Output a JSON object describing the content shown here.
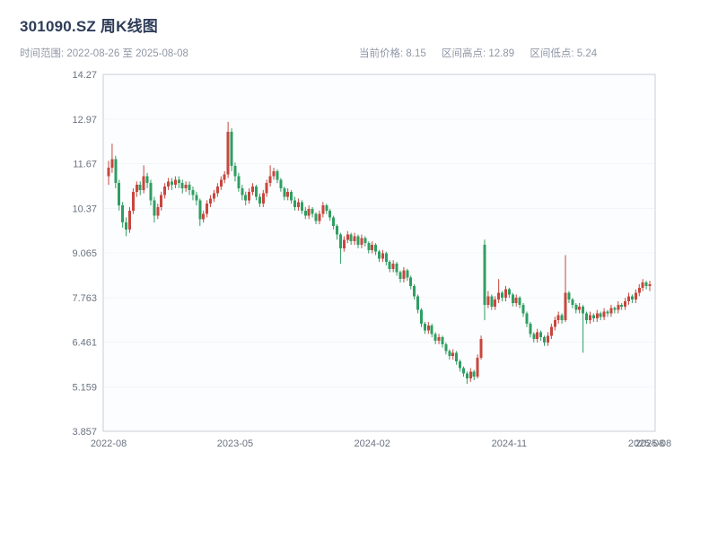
{
  "header": {
    "title": "301090.SZ 周K线图",
    "time_range": "时间范围: 2022-08-26 至 2025-08-08",
    "stats": {
      "current_price": "当前价格: 8.15",
      "range_high": "区间高点: 12.89",
      "range_low": "区间低点: 5.24"
    }
  },
  "chart_data": {
    "type": "candlestick",
    "title": "301090.SZ 周K线图",
    "period": "weekly",
    "date_range": [
      "2022-08-26",
      "2025-08-08"
    ],
    "current_price": 8.15,
    "range_high": 12.89,
    "range_low": 5.24,
    "ylim": [
      3.857,
      14.273
    ],
    "grid": "horizontal-faint",
    "legend": "none",
    "y_ticks": [
      {
        "value": 3.857,
        "label": "3.857"
      },
      {
        "value": 5.159,
        "label": "5.159"
      },
      {
        "value": 6.461,
        "label": "6.461"
      },
      {
        "value": 7.763,
        "label": "7.763"
      },
      {
        "value": 9.065,
        "label": "9.065"
      },
      {
        "value": 10.367,
        "label": "10.37"
      },
      {
        "value": 11.669,
        "label": "11.67"
      },
      {
        "value": 12.971,
        "label": "12.97"
      },
      {
        "value": 14.273,
        "label": "14.27"
      }
    ],
    "x_ticks": [
      {
        "index": 0,
        "label": "2022-08"
      },
      {
        "index": 36,
        "label": "2023-05"
      },
      {
        "index": 75,
        "label": "2024-02"
      },
      {
        "index": 114,
        "label": "2024-11"
      },
      {
        "index": 153,
        "label": "2025-08"
      },
      {
        "index": 155,
        "label": "2025-08"
      }
    ],
    "colors": {
      "up": "#c8463e",
      "down": "#2f9e62",
      "axis_text": "#6a7380",
      "grid": "#f3f5f8",
      "plot_border": "#c9ced7",
      "plot_bg": "#fcfdfe",
      "title": "#2e3c58",
      "subtitle": "#8f97a6"
    },
    "candles_format": [
      "open",
      "high",
      "low",
      "close"
    ],
    "candles": [
      [
        11.3,
        11.75,
        11.05,
        11.55
      ],
      [
        11.55,
        12.25,
        11.4,
        11.8
      ],
      [
        11.8,
        11.9,
        10.95,
        11.1
      ],
      [
        11.1,
        11.2,
        10.3,
        10.45
      ],
      [
        10.45,
        10.55,
        9.8,
        9.95
      ],
      [
        9.95,
        10.1,
        9.55,
        9.75
      ],
      [
        9.75,
        10.4,
        9.65,
        10.3
      ],
      [
        10.3,
        10.95,
        10.2,
        10.85
      ],
      [
        10.85,
        11.15,
        10.7,
        11.05
      ],
      [
        11.05,
        11.15,
        10.75,
        10.9
      ],
      [
        10.9,
        11.62,
        10.8,
        11.3
      ],
      [
        11.3,
        11.4,
        10.95,
        11.1
      ],
      [
        11.1,
        11.2,
        10.45,
        10.6
      ],
      [
        10.6,
        10.7,
        9.95,
        10.15
      ],
      [
        10.15,
        10.5,
        10.05,
        10.4
      ],
      [
        10.4,
        10.85,
        10.3,
        10.75
      ],
      [
        10.75,
        11.1,
        10.65,
        11.0
      ],
      [
        11.0,
        11.25,
        10.9,
        11.15
      ],
      [
        11.15,
        11.25,
        10.9,
        11.05
      ],
      [
        11.05,
        11.3,
        10.95,
        11.2
      ],
      [
        11.2,
        11.3,
        10.95,
        11.1
      ],
      [
        11.1,
        11.2,
        10.8,
        10.95
      ],
      [
        10.95,
        11.15,
        10.85,
        11.05
      ],
      [
        11.05,
        11.15,
        10.75,
        10.9
      ],
      [
        10.9,
        11.0,
        10.6,
        10.75
      ],
      [
        10.75,
        10.85,
        10.45,
        10.6
      ],
      [
        10.6,
        10.65,
        9.85,
        10.05
      ],
      [
        10.05,
        10.3,
        9.95,
        10.2
      ],
      [
        10.2,
        10.6,
        10.1,
        10.5
      ],
      [
        10.5,
        10.75,
        10.4,
        10.65
      ],
      [
        10.65,
        10.9,
        10.55,
        10.8
      ],
      [
        10.8,
        11.1,
        10.7,
        11.0
      ],
      [
        11.0,
        11.3,
        10.9,
        11.2
      ],
      [
        11.2,
        11.45,
        11.1,
        11.35
      ],
      [
        11.35,
        12.89,
        11.25,
        12.6
      ],
      [
        12.6,
        12.7,
        11.45,
        11.6
      ],
      [
        11.6,
        11.7,
        11.15,
        11.3
      ],
      [
        11.3,
        11.4,
        10.85,
        10.95
      ],
      [
        10.95,
        11.05,
        10.6,
        10.75
      ],
      [
        10.75,
        10.85,
        10.45,
        10.6
      ],
      [
        10.6,
        10.95,
        10.5,
        10.85
      ],
      [
        10.85,
        11.1,
        10.75,
        11.0
      ],
      [
        11.0,
        11.05,
        10.6,
        10.7
      ],
      [
        10.7,
        10.8,
        10.4,
        10.5
      ],
      [
        10.5,
        10.9,
        10.4,
        10.8
      ],
      [
        10.8,
        11.2,
        10.7,
        11.1
      ],
      [
        11.1,
        11.62,
        11.0,
        11.3
      ],
      [
        11.3,
        11.55,
        11.2,
        11.45
      ],
      [
        11.45,
        11.5,
        11.1,
        11.2
      ],
      [
        11.2,
        11.25,
        10.85,
        10.95
      ],
      [
        10.95,
        11.0,
        10.6,
        10.7
      ],
      [
        10.7,
        10.95,
        10.6,
        10.85
      ],
      [
        10.85,
        10.9,
        10.5,
        10.6
      ],
      [
        10.6,
        10.7,
        10.3,
        10.4
      ],
      [
        10.4,
        10.65,
        10.3,
        10.55
      ],
      [
        10.55,
        10.6,
        10.2,
        10.3
      ],
      [
        10.3,
        10.4,
        10.05,
        10.15
      ],
      [
        10.15,
        10.45,
        10.05,
        10.35
      ],
      [
        10.35,
        10.4,
        10.1,
        10.2
      ],
      [
        10.2,
        10.25,
        9.9,
        10.0
      ],
      [
        10.0,
        10.3,
        9.9,
        10.2
      ],
      [
        10.2,
        10.55,
        10.1,
        10.45
      ],
      [
        10.45,
        10.5,
        10.2,
        10.3
      ],
      [
        10.3,
        10.35,
        10.0,
        10.1
      ],
      [
        10.1,
        10.15,
        9.75,
        9.85
      ],
      [
        9.85,
        9.9,
        9.45,
        9.6
      ],
      [
        9.6,
        9.65,
        8.75,
        9.2
      ],
      [
        9.2,
        9.55,
        9.1,
        9.45
      ],
      [
        9.45,
        9.7,
        9.35,
        9.6
      ],
      [
        9.6,
        9.65,
        9.3,
        9.4
      ],
      [
        9.4,
        9.65,
        9.3,
        9.55
      ],
      [
        9.55,
        9.6,
        9.2,
        9.3
      ],
      [
        9.3,
        9.6,
        9.2,
        9.5
      ],
      [
        9.5,
        9.55,
        9.25,
        9.35
      ],
      [
        9.35,
        9.4,
        9.05,
        9.15
      ],
      [
        9.15,
        9.4,
        9.05,
        9.3
      ],
      [
        9.3,
        9.35,
        9.0,
        9.1
      ],
      [
        9.1,
        9.15,
        8.8,
        8.9
      ],
      [
        8.9,
        9.15,
        8.8,
        9.05
      ],
      [
        9.05,
        9.1,
        8.7,
        8.8
      ],
      [
        8.8,
        8.85,
        8.5,
        8.6
      ],
      [
        8.6,
        8.85,
        8.5,
        8.75
      ],
      [
        8.75,
        8.8,
        8.4,
        8.5
      ],
      [
        8.5,
        8.55,
        8.2,
        8.3
      ],
      [
        8.3,
        8.65,
        8.2,
        8.55
      ],
      [
        8.55,
        8.6,
        8.25,
        8.35
      ],
      [
        8.35,
        8.4,
        8.0,
        8.1
      ],
      [
        8.1,
        8.15,
        7.7,
        7.8
      ],
      [
        7.8,
        7.85,
        7.3,
        7.4
      ],
      [
        7.4,
        7.45,
        6.9,
        7.0
      ],
      [
        7.0,
        7.05,
        6.7,
        6.8
      ],
      [
        6.8,
        7.05,
        6.7,
        6.95
      ],
      [
        6.95,
        7.0,
        6.6,
        6.7
      ],
      [
        6.7,
        6.75,
        6.4,
        6.5
      ],
      [
        6.5,
        6.7,
        6.4,
        6.6
      ],
      [
        6.6,
        6.65,
        6.3,
        6.4
      ],
      [
        6.4,
        6.45,
        6.1,
        6.2
      ],
      [
        6.2,
        6.25,
        5.95,
        6.05
      ],
      [
        6.05,
        6.25,
        5.95,
        6.15
      ],
      [
        6.15,
        6.2,
        5.8,
        5.9
      ],
      [
        5.9,
        5.95,
        5.6,
        5.7
      ],
      [
        5.7,
        5.75,
        5.45,
        5.55
      ],
      [
        5.55,
        5.6,
        5.24,
        5.4
      ],
      [
        5.4,
        5.7,
        5.3,
        5.6
      ],
      [
        5.6,
        5.65,
        5.35,
        5.45
      ],
      [
        5.45,
        6.1,
        5.4,
        6.0
      ],
      [
        6.0,
        6.65,
        5.95,
        6.55
      ],
      [
        9.3,
        9.45,
        7.1,
        7.55
      ],
      [
        7.55,
        7.95,
        7.45,
        7.8
      ],
      [
        7.8,
        7.85,
        7.4,
        7.5
      ],
      [
        7.5,
        7.8,
        7.4,
        7.7
      ],
      [
        7.7,
        8.3,
        7.6,
        7.9
      ],
      [
        7.9,
        7.95,
        7.65,
        7.75
      ],
      [
        7.75,
        8.1,
        7.65,
        8.0
      ],
      [
        8.0,
        8.05,
        7.75,
        7.85
      ],
      [
        7.85,
        7.9,
        7.5,
        7.6
      ],
      [
        7.6,
        7.85,
        7.5,
        7.75
      ],
      [
        7.75,
        7.8,
        7.45,
        7.55
      ],
      [
        7.55,
        7.6,
        7.2,
        7.3
      ],
      [
        7.3,
        7.35,
        6.9,
        7.0
      ],
      [
        7.0,
        7.05,
        6.6,
        6.7
      ],
      [
        6.7,
        6.75,
        6.45,
        6.55
      ],
      [
        6.55,
        6.85,
        6.45,
        6.75
      ],
      [
        6.75,
        6.8,
        6.5,
        6.6
      ],
      [
        6.6,
        6.65,
        6.35,
        6.45
      ],
      [
        6.45,
        6.75,
        6.35,
        6.65
      ],
      [
        6.65,
        7.0,
        6.55,
        6.9
      ],
      [
        6.9,
        7.2,
        6.8,
        7.1
      ],
      [
        7.1,
        7.35,
        7.0,
        7.25
      ],
      [
        7.25,
        7.3,
        7.0,
        7.1
      ],
      [
        7.1,
        9.0,
        7.05,
        7.9
      ],
      [
        7.9,
        7.95,
        7.6,
        7.7
      ],
      [
        7.7,
        7.75,
        7.45,
        7.55
      ],
      [
        7.55,
        7.6,
        7.3,
        7.4
      ],
      [
        7.4,
        7.6,
        7.3,
        7.5
      ],
      [
        7.5,
        7.55,
        6.15,
        7.3
      ],
      [
        7.3,
        7.35,
        7.0,
        7.1
      ],
      [
        7.1,
        7.35,
        7.0,
        7.25
      ],
      [
        7.25,
        7.3,
        7.05,
        7.15
      ],
      [
        7.15,
        7.4,
        7.05,
        7.3
      ],
      [
        7.3,
        7.35,
        7.1,
        7.2
      ],
      [
        7.2,
        7.45,
        7.1,
        7.35
      ],
      [
        7.35,
        7.4,
        7.2,
        7.3
      ],
      [
        7.3,
        7.55,
        7.2,
        7.45
      ],
      [
        7.45,
        7.5,
        7.3,
        7.4
      ],
      [
        7.4,
        7.65,
        7.3,
        7.55
      ],
      [
        7.55,
        7.6,
        7.4,
        7.5
      ],
      [
        7.5,
        7.75,
        7.4,
        7.65
      ],
      [
        7.65,
        7.9,
        7.55,
        7.8
      ],
      [
        7.8,
        7.85,
        7.6,
        7.7
      ],
      [
        7.7,
        8.0,
        7.6,
        7.9
      ],
      [
        7.9,
        8.15,
        7.8,
        8.05
      ],
      [
        8.05,
        8.3,
        7.95,
        8.2
      ],
      [
        8.2,
        8.25,
        8.0,
        8.1
      ],
      [
        8.1,
        8.25,
        7.95,
        8.15
      ]
    ]
  }
}
